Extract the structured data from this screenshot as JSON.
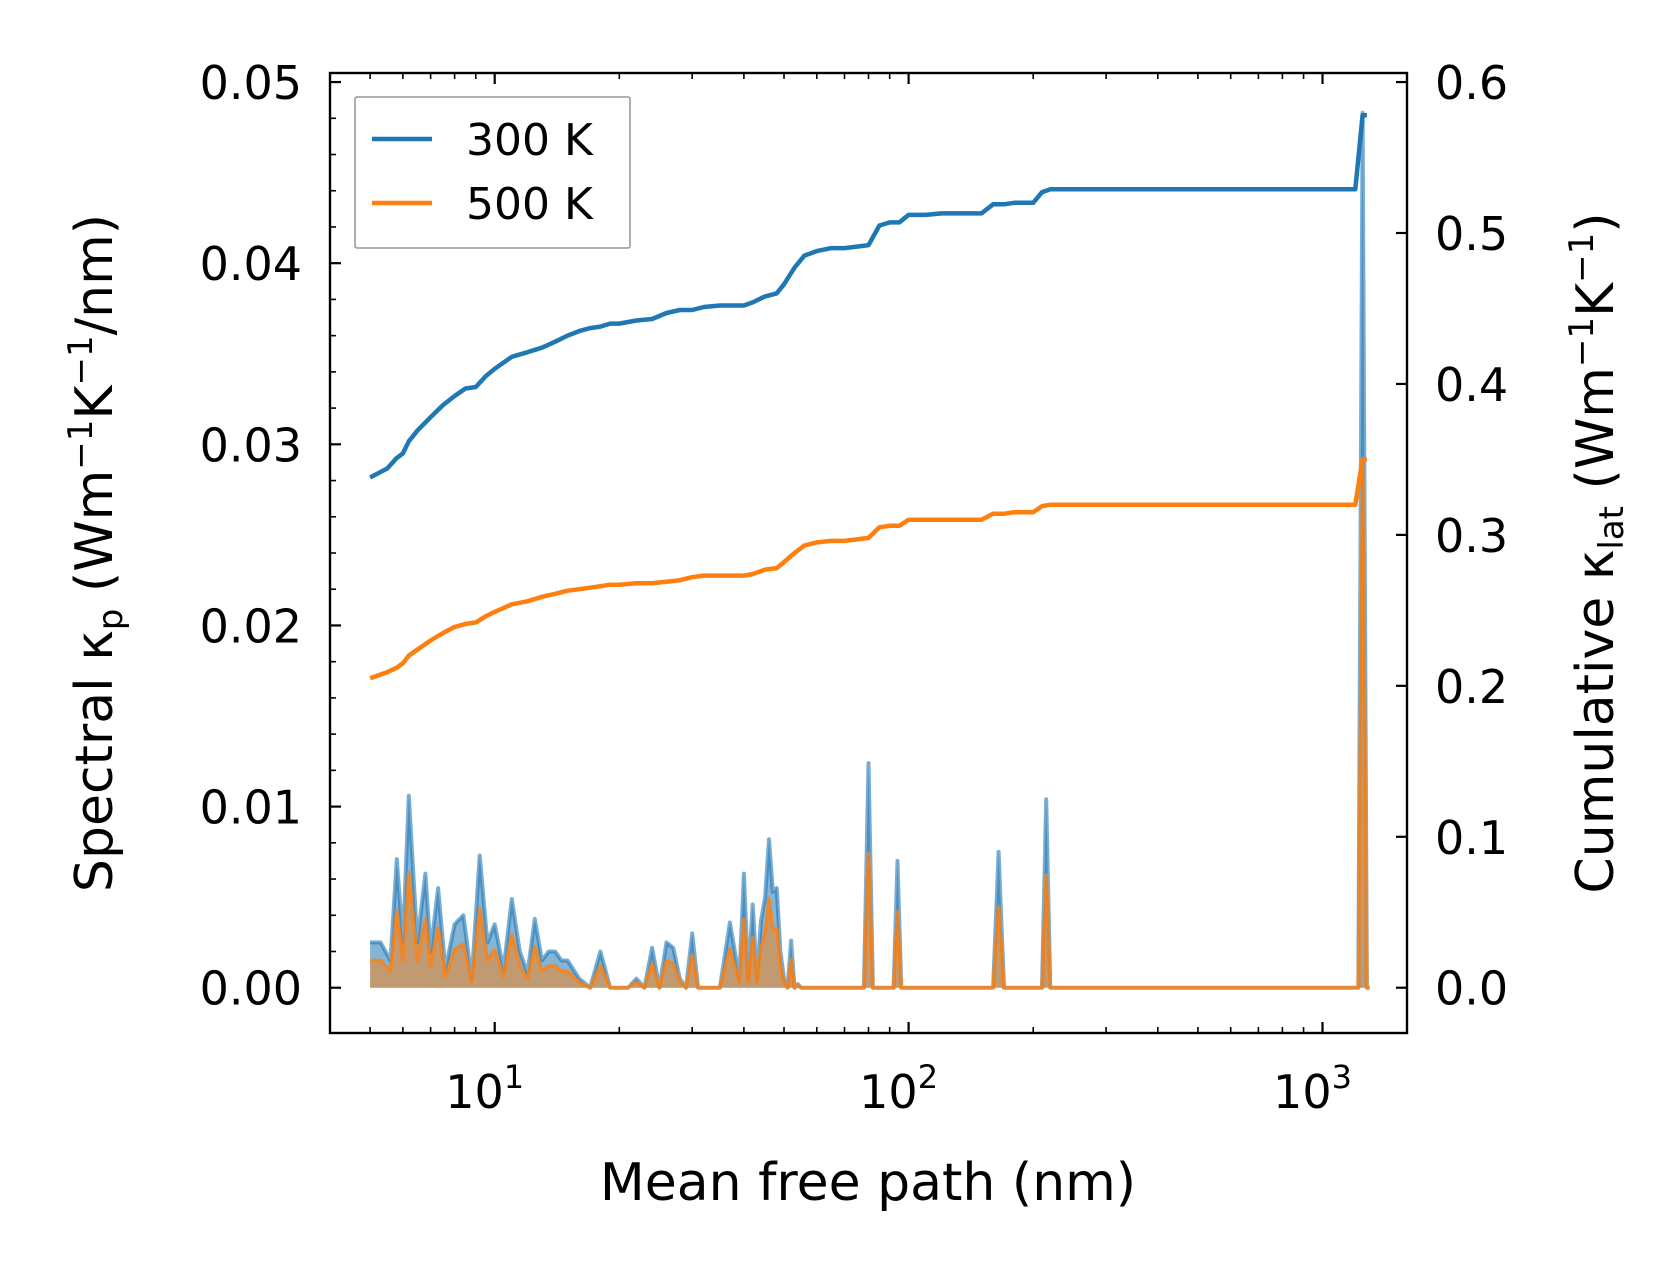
{
  "chart_data": {
    "type": "line",
    "xscale": "log",
    "xlim": [
      4.0,
      1600
    ],
    "ylim_left": [
      -0.0025,
      0.0505
    ],
    "ylim_right": [
      -0.03,
      0.606
    ],
    "xlabel": "Mean free path (nm)",
    "ylabel_left": {
      "prefix": "Spectral κ",
      "sub": "p",
      "mid": " (Wm",
      "sup1": "−1",
      "mid2": "K",
      "sup2": "−1",
      "suffix": "/nm)"
    },
    "ylabel_right": {
      "prefix": "Cumulative κ",
      "sub": "lat",
      "mid": " (Wm",
      "sup1": "−1",
      "mid2": "K",
      "sup2": "−1",
      "suffix": ")"
    },
    "x_ticks": [
      {
        "value": 10,
        "base": "10",
        "exp": "1"
      },
      {
        "value": 100,
        "base": "10",
        "exp": "2"
      },
      {
        "value": 1000,
        "base": "10",
        "exp": "3"
      }
    ],
    "y_ticks_left": [
      0.0,
      0.01,
      0.02,
      0.03,
      0.04,
      0.05
    ],
    "y_tick_labels_left": [
      "0.00",
      "0.01",
      "0.02",
      "0.03",
      "0.04",
      "0.05"
    ],
    "y_ticks_right": [
      0.0,
      0.1,
      0.2,
      0.3,
      0.4,
      0.5,
      0.6
    ],
    "y_tick_labels_right": [
      "0.0",
      "0.1",
      "0.2",
      "0.3",
      "0.4",
      "0.5",
      "0.6"
    ],
    "legend": {
      "position": "top-left",
      "entries": [
        "300 K",
        "500 K"
      ]
    },
    "colors": {
      "300 K": "#1f77b4",
      "500 K": "#ff7f0e"
    },
    "cumulative": [
      {
        "name": "300 K",
        "axis": "right",
        "x": [
          5,
          5.5,
          5.8,
          6,
          6.2,
          6.5,
          7,
          7.5,
          8,
          8.5,
          9,
          9.5,
          10,
          11,
          12,
          13,
          14,
          15,
          16,
          17,
          18,
          19,
          20,
          22,
          24,
          26,
          28,
          30,
          32,
          35,
          38,
          40,
          42,
          45,
          48,
          50,
          53,
          56,
          60,
          65,
          70,
          75,
          80,
          85,
          90,
          95,
          100,
          110,
          120,
          130,
          150,
          160,
          170,
          180,
          200,
          210,
          220,
          300,
          500,
          700,
          1000,
          1200,
          1250,
          1280
        ],
        "y": [
          0.338,
          0.344,
          0.351,
          0.354,
          0.362,
          0.369,
          0.378,
          0.386,
          0.392,
          0.397,
          0.398,
          0.405,
          0.41,
          0.418,
          0.421,
          0.424,
          0.428,
          0.432,
          0.435,
          0.437,
          0.438,
          0.44,
          0.44,
          0.442,
          0.443,
          0.447,
          0.449,
          0.449,
          0.451,
          0.452,
          0.452,
          0.452,
          0.454,
          0.458,
          0.46,
          0.466,
          0.477,
          0.485,
          0.488,
          0.49,
          0.49,
          0.491,
          0.492,
          0.505,
          0.507,
          0.507,
          0.512,
          0.512,
          0.513,
          0.513,
          0.513,
          0.519,
          0.519,
          0.52,
          0.52,
          0.527,
          0.529,
          0.529,
          0.529,
          0.529,
          0.529,
          0.529,
          0.578,
          0.578
        ]
      },
      {
        "name": "500 K",
        "axis": "right",
        "x": [
          5,
          5.5,
          5.8,
          6,
          6.2,
          6.5,
          7,
          7.5,
          8,
          8.5,
          9,
          9.5,
          10,
          11,
          12,
          13,
          14,
          15,
          16,
          17,
          18,
          19,
          20,
          22,
          24,
          26,
          28,
          30,
          32,
          35,
          38,
          40,
          42,
          45,
          48,
          50,
          53,
          56,
          60,
          65,
          70,
          75,
          80,
          85,
          90,
          95,
          100,
          110,
          120,
          130,
          150,
          160,
          170,
          180,
          200,
          210,
          220,
          300,
          500,
          700,
          1000,
          1200,
          1250,
          1280
        ],
        "y": [
          0.205,
          0.209,
          0.212,
          0.215,
          0.22,
          0.224,
          0.23,
          0.235,
          0.239,
          0.241,
          0.242,
          0.246,
          0.249,
          0.254,
          0.256,
          0.259,
          0.261,
          0.263,
          0.264,
          0.265,
          0.266,
          0.267,
          0.267,
          0.268,
          0.268,
          0.269,
          0.27,
          0.272,
          0.273,
          0.273,
          0.273,
          0.273,
          0.274,
          0.277,
          0.278,
          0.282,
          0.288,
          0.293,
          0.295,
          0.296,
          0.296,
          0.297,
          0.298,
          0.305,
          0.306,
          0.306,
          0.31,
          0.31,
          0.31,
          0.31,
          0.31,
          0.314,
          0.314,
          0.315,
          0.315,
          0.319,
          0.32,
          0.32,
          0.32,
          0.32,
          0.32,
          0.32,
          0.35,
          0.35
        ]
      }
    ],
    "spectral": [
      {
        "name": "300 K",
        "axis": "left",
        "x": [
          5,
          5.3,
          5.6,
          5.8,
          6.0,
          6.2,
          6.5,
          6.8,
          7.0,
          7.3,
          7.6,
          8.0,
          8.4,
          8.8,
          9.2,
          9.6,
          10.0,
          10.5,
          11.0,
          11.5,
          12.0,
          12.5,
          13.0,
          13.5,
          14.0,
          14.5,
          15.0,
          16.0,
          17.0,
          18.0,
          19.0,
          20.0,
          21.0,
          22.0,
          23.0,
          24.0,
          25.0,
          26.0,
          27.0,
          28.0,
          29.0,
          30.0,
          31.0,
          32.0,
          33.0,
          35.0,
          37.0,
          39.0,
          40.0,
          41.0,
          42.0,
          43.0,
          44.0,
          45.0,
          46.0,
          47.0,
          48.0,
          49.0,
          50.0,
          51.0,
          52.0,
          53.0,
          54.0,
          55.0,
          56.0,
          58.0,
          60.0,
          62.0,
          64.0,
          66.0,
          68.0,
          70.0,
          72.0,
          74.0,
          76.0,
          78.0,
          80.0,
          82.0,
          84.0,
          86.0,
          88.0,
          90.0,
          92.0,
          94.0,
          96.0,
          98.0,
          100.0,
          102.0,
          105.0,
          110.0,
          150.0,
          160.0,
          165.0,
          170.0,
          175.0,
          200.0,
          210.0,
          215.0,
          220.0,
          225.0,
          1150.0,
          1190.0,
          1220.0,
          1250.0,
          1280.0,
          1300.0
        ],
        "y": [
          0.0025,
          0.0025,
          0.0015,
          0.0071,
          0.0025,
          0.0106,
          0.0025,
          0.0063,
          0.002,
          0.0055,
          0.001,
          0.0035,
          0.004,
          0.0005,
          0.0073,
          0.0025,
          0.0035,
          0.001,
          0.0049,
          0.002,
          0.0008,
          0.0038,
          0.0015,
          0.002,
          0.002,
          0.0015,
          0.0015,
          0.0005,
          0.0,
          0.002,
          0.0,
          0.0,
          0.0,
          0.0005,
          0.0,
          0.0022,
          0.0,
          0.0025,
          0.0022,
          0.0005,
          0.0,
          0.003,
          0.0,
          0.0,
          0.0,
          0.0,
          0.0036,
          0.0005,
          0.0063,
          0.0005,
          0.0046,
          0.0005,
          0.0037,
          0.005,
          0.0082,
          0.0053,
          0.0055,
          0.002,
          0.0005,
          0.0,
          0.0026,
          0.0,
          0.0002,
          0.0,
          0.0,
          0.0,
          0.0,
          0.0,
          0.0,
          0.0,
          0.0,
          0.0,
          0.0,
          0.0,
          0.0,
          0.0,
          0.0124,
          0.0,
          0.0,
          0.0,
          0.0,
          0.0,
          0.0,
          0.007,
          0.0,
          0.0,
          0.0,
          0.0,
          0.0,
          0.0,
          0.0,
          0.0,
          0.0075,
          0.0,
          0.0,
          0.0,
          0.0,
          0.0104,
          0.0,
          0.0,
          0.0,
          0.0,
          0.0,
          0.0483,
          0.0,
          0.0
        ]
      }
    ]
  }
}
